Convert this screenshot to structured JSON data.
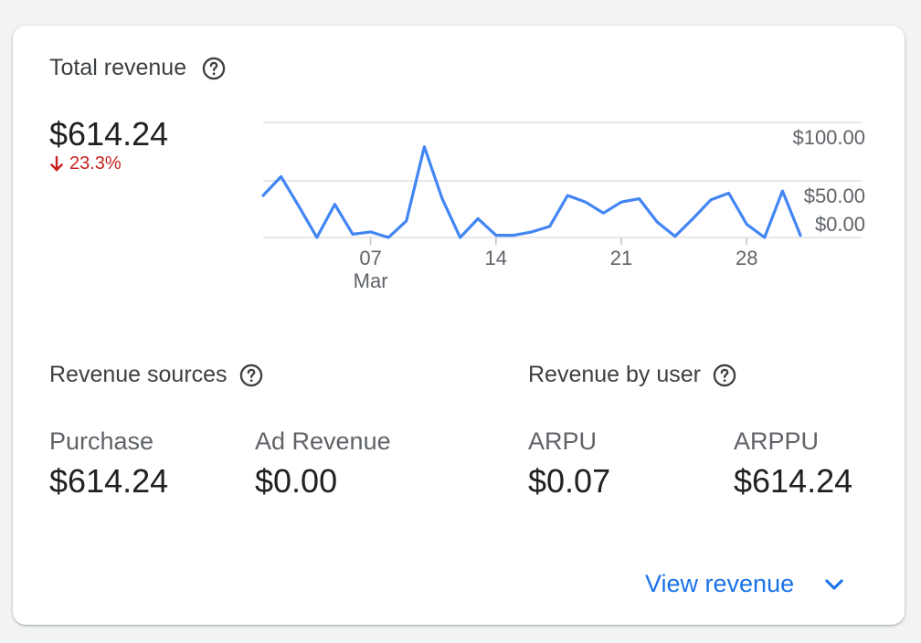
{
  "total_revenue": {
    "title": "Total revenue",
    "value": "$614.24",
    "delta": "23.3%",
    "delta_color": "#c5221f",
    "delta_icon": "arrow-down-icon"
  },
  "chart_data": {
    "type": "line",
    "series": [
      {
        "color": "#4285f4",
        "values": [
          38,
          55,
          28,
          0,
          30,
          3,
          5,
          0,
          15,
          82,
          35,
          0,
          17,
          2,
          2,
          5,
          10,
          38,
          32,
          22,
          32,
          35,
          14,
          1,
          17,
          34,
          40,
          12,
          0,
          42,
          2
        ]
      }
    ],
    "ytick_labels": [
      "$100.00",
      "$50.00",
      "$0.00"
    ],
    "xtick_labels": [
      "07",
      "14",
      "21",
      "28"
    ],
    "xtick_sublabel": "Mar",
    "x_start": "Mar 1"
  },
  "revenue_sources": {
    "title": "Revenue sources",
    "items": [
      {
        "label": "Purchase",
        "value": "$614.24"
      },
      {
        "label": "Ad Revenue",
        "value": "$0.00"
      }
    ]
  },
  "revenue_by_user": {
    "title": "Revenue by user",
    "items": [
      {
        "label": "ARPU",
        "value": "$0.07"
      },
      {
        "label": "ARPPU",
        "value": "$614.24"
      }
    ]
  },
  "footer": {
    "link_label": "View revenue",
    "accent": "#1a73e8"
  }
}
